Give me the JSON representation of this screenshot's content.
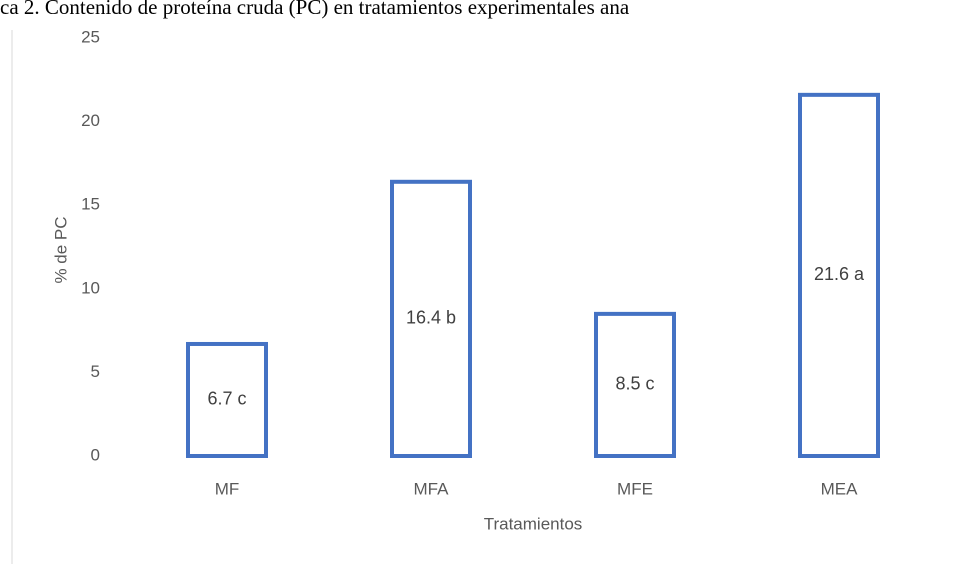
{
  "chart_data": {
    "type": "bar",
    "title": "ca 2. Contenido de proteína cruda (PC) en tratamientos experimentales ana",
    "x_label": "Tratamientos",
    "y_label": "% de PC",
    "categories": [
      "MF",
      "MFA",
      "MFE",
      "MEA"
    ],
    "values": [
      6.7,
      16.4,
      8.5,
      21.6
    ],
    "value_labels": [
      "6.7 c",
      "16.4 b",
      "8.5 c",
      "21.6 a"
    ],
    "color": "#4472c4",
    "ylim": [
      0,
      25
    ],
    "yticks": [
      0,
      5,
      10,
      15,
      20,
      25
    ],
    "grid": false
  }
}
